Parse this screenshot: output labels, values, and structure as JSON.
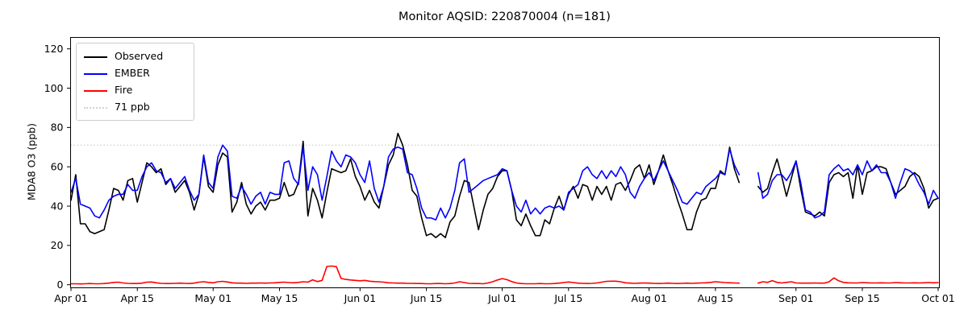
{
  "chart": {
    "title": "Monitor AQSID: 220870004 (n=181)",
    "ylabel": "MDA8 O3 (ppb)"
  },
  "legend": {
    "items": [
      {
        "label": "Observed",
        "style": "solid",
        "color": "#000000"
      },
      {
        "label": "EMBER",
        "style": "solid",
        "color": "#0000ff"
      },
      {
        "label": "Fire",
        "style": "solid",
        "color": "#ff0000"
      },
      {
        "label": "71 ppb",
        "style": "dotted",
        "color": "#d3d3d3"
      }
    ]
  },
  "chart_data": {
    "type": "line",
    "title": "Monitor AQSID: 220870004 (n=181)",
    "xlabel": "",
    "ylabel": "MDA8 O3 (ppb)",
    "ylim": [
      -1.4,
      126
    ],
    "y_ticks": [
      0,
      20,
      40,
      60,
      80,
      100,
      120
    ],
    "x_tick_days": [
      0,
      14,
      30,
      44,
      61,
      75,
      91,
      105,
      122,
      136,
      153,
      167,
      183
    ],
    "x_tick_labels": [
      "Apr 01",
      "Apr 15",
      "May 01",
      "May 15",
      "Jun 01",
      "Jun 15",
      "Jul 01",
      "Jul 15",
      "Aug 01",
      "Aug 15",
      "Sep 01",
      "Sep 15",
      "Oct 01"
    ],
    "x_range_days": 183,
    "x_start_date": "Apr 01",
    "x_end_date": "Oct 01",
    "n_points": 181,
    "missing_days": [
      "Aug 21",
      "Aug 22",
      "Aug 23"
    ],
    "threshold": {
      "label": "71 ppb",
      "value": 71,
      "color": "#d3d3d3",
      "style": "dotted"
    },
    "grid": false,
    "legend_position": "upper left",
    "series": [
      {
        "name": "Observed",
        "color": "#000000",
        "values": [
          43,
          56,
          31,
          31,
          27,
          26,
          27,
          28,
          38,
          49,
          48,
          43,
          53,
          54,
          42,
          52,
          62,
          60,
          57,
          59,
          51,
          54,
          47,
          50,
          53,
          47,
          38,
          46,
          65,
          50,
          47,
          61,
          67,
          65,
          37,
          42,
          52,
          41,
          36,
          40,
          42,
          38,
          43,
          43,
          44,
          52,
          45,
          46,
          52,
          73,
          35,
          49,
          43,
          34,
          47,
          59,
          58,
          57,
          58,
          64,
          55,
          50,
          43,
          48,
          42,
          39,
          50,
          61,
          66,
          77,
          71,
          61,
          48,
          45,
          34,
          25,
          26,
          24,
          26,
          24,
          32,
          35,
          45,
          53,
          52,
          40,
          28,
          38,
          46,
          49,
          55,
          58,
          58,
          48,
          33,
          30,
          36,
          30,
          25,
          25,
          33,
          31,
          39,
          45,
          38,
          46,
          50,
          44,
          51,
          50,
          43,
          50,
          46,
          50,
          43,
          51,
          52,
          48,
          53,
          59,
          61,
          54,
          61,
          51,
          58,
          66,
          58,
          51,
          43,
          36,
          28,
          28,
          37,
          43,
          44,
          49,
          49,
          58,
          56,
          70,
          59,
          52,
          null,
          null,
          null,
          50,
          47,
          49,
          57,
          64,
          55,
          45,
          54,
          63,
          49,
          37,
          36,
          35,
          37,
          35,
          52,
          56,
          57,
          55,
          57,
          44,
          61,
          46,
          57,
          58,
          60,
          60,
          59,
          52,
          46,
          48,
          50,
          55,
          57,
          55,
          49,
          39,
          43,
          44
        ]
      },
      {
        "name": "EMBER",
        "color": "#0000ff",
        "values": [
          47,
          54,
          41,
          40,
          39,
          35,
          34,
          38,
          43,
          45,
          46,
          46,
          51,
          48,
          48,
          55,
          60,
          62,
          58,
          57,
          52,
          54,
          49,
          52,
          55,
          48,
          43,
          46,
          66,
          52,
          49,
          65,
          71,
          68,
          45,
          44,
          50,
          46,
          41,
          45,
          47,
          41,
          47,
          46,
          46,
          62,
          63,
          54,
          51,
          70,
          48,
          60,
          56,
          43,
          55,
          68,
          63,
          60,
          66,
          65,
          62,
          56,
          52,
          63,
          49,
          42,
          50,
          65,
          69,
          70,
          69,
          57,
          56,
          49,
          39,
          34,
          34,
          33,
          39,
          34,
          39,
          48,
          62,
          64,
          47,
          49,
          51,
          53,
          54,
          55,
          56,
          59,
          58,
          48,
          40,
          37,
          43,
          36,
          39,
          36,
          39,
          40,
          39,
          40,
          38,
          47,
          49,
          51,
          58,
          60,
          56,
          54,
          58,
          54,
          58,
          55,
          60,
          56,
          47,
          44,
          50,
          54,
          57,
          53,
          58,
          63,
          58,
          53,
          48,
          42,
          41,
          44,
          47,
          46,
          50,
          52,
          54,
          57,
          56,
          69,
          61,
          56,
          null,
          null,
          null,
          57,
          44,
          46,
          53,
          56,
          56,
          53,
          57,
          63,
          52,
          38,
          37,
          34,
          35,
          37,
          56,
          59,
          61,
          58,
          59,
          56,
          61,
          56,
          63,
          58,
          61,
          57,
          57,
          52,
          44,
          52,
          59,
          58,
          56,
          51,
          47,
          41,
          48,
          44
        ]
      },
      {
        "name": "Fire",
        "color": "#ff0000",
        "values": [
          0.5,
          0.5,
          0.4,
          0.5,
          0.6,
          0.5,
          0.5,
          0.6,
          0.8,
          1.2,
          1.3,
          0.9,
          0.7,
          0.6,
          0.6,
          0.8,
          1.3,
          1.4,
          1.0,
          0.7,
          0.6,
          0.6,
          0.7,
          0.8,
          0.7,
          0.6,
          0.8,
          1.3,
          1.5,
          1.2,
          1.0,
          1.5,
          1.7,
          1.4,
          1.0,
          0.8,
          0.8,
          0.7,
          0.8,
          0.8,
          0.9,
          0.8,
          0.9,
          1.0,
          1.2,
          1.3,
          1.1,
          1.0,
          1.2,
          1.5,
          1.3,
          2.5,
          1.6,
          2.2,
          9.3,
          9.5,
          9.2,
          3.2,
          2.7,
          2.4,
          2.2,
          2.0,
          2.2,
          1.8,
          1.6,
          1.5,
          1.3,
          1.0,
          0.9,
          0.8,
          0.8,
          0.7,
          0.7,
          0.6,
          0.6,
          0.5,
          0.5,
          0.6,
          0.6,
          0.5,
          0.6,
          0.9,
          1.5,
          1.1,
          0.7,
          0.6,
          0.6,
          0.5,
          0.9,
          1.5,
          2.4,
          3.1,
          2.6,
          1.6,
          0.9,
          0.6,
          0.5,
          0.5,
          0.5,
          0.6,
          0.5,
          0.5,
          0.6,
          0.8,
          1.1,
          1.4,
          1.1,
          0.8,
          0.7,
          0.6,
          0.7,
          0.9,
          1.3,
          1.7,
          1.8,
          1.8,
          1.5,
          1.0,
          0.8,
          0.7,
          0.8,
          0.9,
          0.8,
          0.7,
          0.6,
          0.7,
          0.8,
          0.7,
          0.6,
          0.7,
          0.8,
          0.7,
          0.8,
          0.9,
          1.0,
          1.2,
          1.5,
          1.3,
          1.1,
          1.0,
          0.9,
          0.8,
          null,
          null,
          null,
          0.8,
          1.5,
          1.2,
          2.1,
          1.2,
          0.9,
          1.2,
          1.5,
          0.9,
          0.8,
          0.8,
          0.8,
          0.9,
          0.8,
          0.8,
          1.5,
          3.5,
          2.0,
          1.2,
          1.0,
          0.9,
          0.9,
          1.1,
          1.0,
          0.9,
          0.9,
          1.0,
          0.9,
          0.9,
          1.1,
          1.0,
          0.9,
          0.9,
          1.0,
          0.9,
          1.0,
          1.1,
          1.0,
          1.1
        ]
      }
    ]
  }
}
